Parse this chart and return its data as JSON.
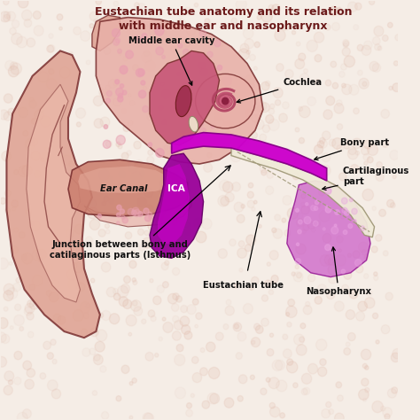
{
  "title_line1": "Eustachian tube anatomy and its relation",
  "title_line2": "with middle ear and nasopharynx",
  "title_color": "#6b1a1a",
  "bg_color": "#f5ede6",
  "bg_dot_color": "#e0b8a8",
  "labels": {
    "middle_ear_cavity": "Middle ear cavity",
    "cochlea": "Cochlea",
    "ear_canal": "Ear Canal",
    "ica": "ICA",
    "bony_part": "Bony part",
    "cartilaginous_part": "Cartilaginous\npart",
    "junction": "Junction between bony and\ncatilaginous parts (Isthmus)",
    "eustachian_tube": "Eustachian tube",
    "nasopharynx": "Nasopharynx"
  },
  "colors": {
    "outer_ear": "#dea090",
    "outer_ear_light": "#f0c0b0",
    "outer_ear_edge": "#7a3030",
    "inner_ear_body": "#e8b0a8",
    "inner_ear_body2": "#d09090",
    "middle_ear_dark": "#c06070",
    "cochlea_bg": "#e8b0a8",
    "cochlea_spiral": "#c05060",
    "eustachian_bony": "#cc00cc",
    "eustachian_bony2": "#aa00aa",
    "eustachian_cart": "#f0ead8",
    "eustachian_cart_edge": "#a09878",
    "ear_canal_fill": "#cc8070",
    "ear_canal_light": "#e8b0a0",
    "nasopharynx_fill": "#cc50cc",
    "ica_fill": "#990099",
    "ica_dark": "#660066",
    "skin_light": "#f0d0c0",
    "spot_pink": "#e8a0b0",
    "label_dark": "#111111"
  }
}
